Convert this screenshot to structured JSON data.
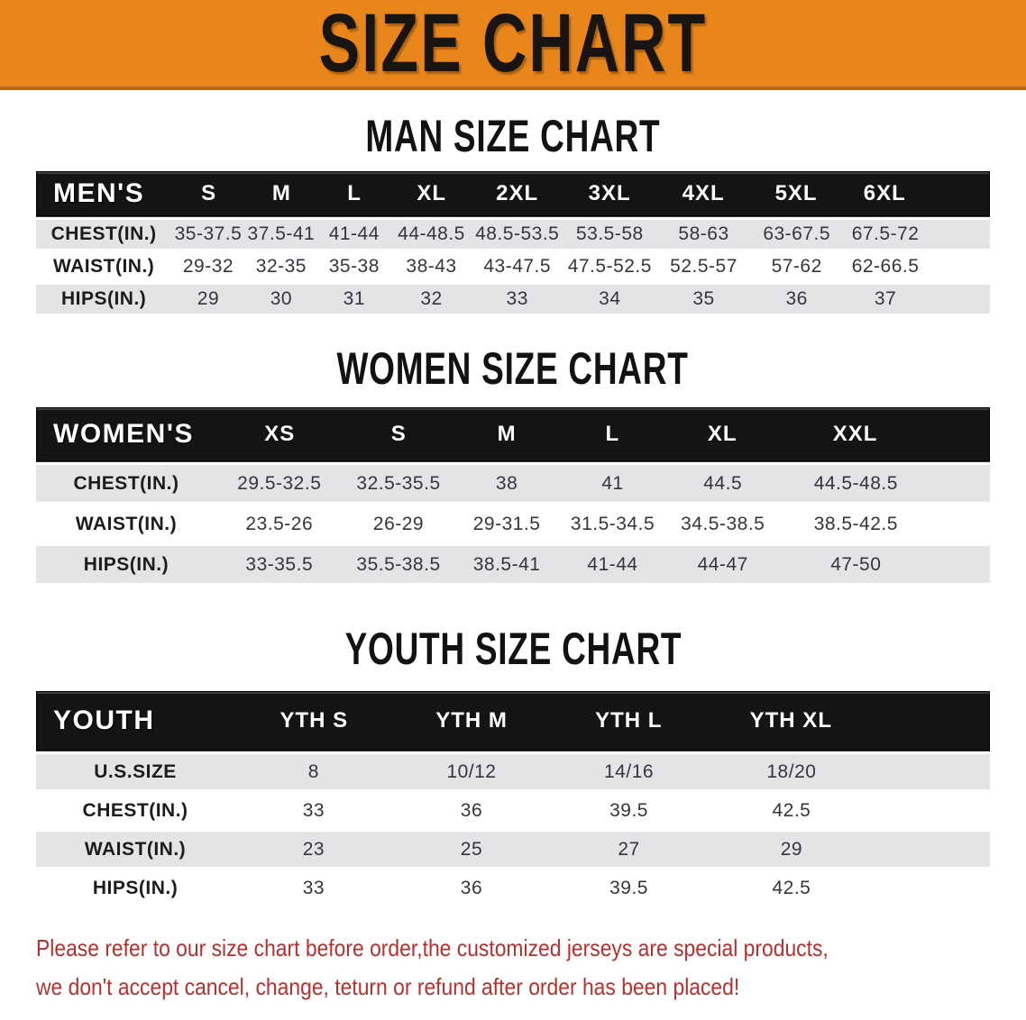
{
  "banner": {
    "title": "SIZE CHART"
  },
  "colors": {
    "banner_orange": "#E8861B",
    "banner_border": "#BC680E",
    "header_black": "#141414",
    "row_gray": "#E4E4E6",
    "row_white": "#FFFFFF",
    "note_red": "#B23230"
  },
  "sections": [
    {
      "id": "men",
      "heading": "MAN SIZE CHART",
      "header_label": "MEN'S",
      "columns": [
        "S",
        "M",
        "L",
        "XL",
        "2XL",
        "3XL",
        "4XL",
        "5XL",
        "6XL"
      ],
      "rows": [
        {
          "label": "CHEST(IN.)",
          "values": [
            "35-37.5",
            "37.5-41",
            "41-44",
            "44-48.5",
            "48.5-53.5",
            "53.5-58",
            "58-63",
            "63-67.5",
            "67.5-72"
          ]
        },
        {
          "label": "WAIST(IN.)",
          "values": [
            "29-32",
            "32-35",
            "35-38",
            "38-43",
            "43-47.5",
            "47.5-52.5",
            "52.5-57",
            "57-62",
            "62-66.5"
          ]
        },
        {
          "label": "HIPS(IN.)",
          "values": [
            "29",
            "30",
            "31",
            "32",
            "33",
            "34",
            "35",
            "36",
            "37"
          ]
        }
      ]
    },
    {
      "id": "women",
      "heading": "WOMEN SIZE CHART",
      "header_label": "WOMEN'S",
      "columns": [
        "XS",
        "S",
        "M",
        "L",
        "XL",
        "XXL"
      ],
      "rows": [
        {
          "label": "CHEST(IN.)",
          "values": [
            "29.5-32.5",
            "32.5-35.5",
            "38",
            "41",
            "44.5",
            "44.5-48.5"
          ]
        },
        {
          "label": "WAIST(IN.)",
          "values": [
            "23.5-26",
            "26-29",
            "29-31.5",
            "31.5-34.5",
            "34.5-38.5",
            "38.5-42.5"
          ]
        },
        {
          "label": "HIPS(IN.)",
          "values": [
            "33-35.5",
            "35.5-38.5",
            "38.5-41",
            "41-44",
            "44-47",
            "47-50"
          ]
        }
      ]
    },
    {
      "id": "youth",
      "heading": "YOUTH SIZE CHART",
      "header_label": "YOUTH",
      "columns": [
        "YTH S",
        "YTH M",
        "YTH L",
        "YTH XL"
      ],
      "rows": [
        {
          "label": "U.S.SIZE",
          "values": [
            "8",
            "10/12",
            "14/16",
            "18/20"
          ]
        },
        {
          "label": "CHEST(IN.)",
          "values": [
            "33",
            "36",
            "39.5",
            "42.5"
          ]
        },
        {
          "label": "WAIST(IN.)",
          "values": [
            "23",
            "25",
            "27",
            "29"
          ]
        },
        {
          "label": "HIPS(IN.)",
          "values": [
            "33",
            "36",
            "39.5",
            "42.5"
          ]
        }
      ]
    }
  ],
  "footer": {
    "line1": "Please refer to our size chart before order,the customized jerseys are special products,",
    "line2": "we don't accept cancel, change, teturn or refund after order has been placed!"
  }
}
